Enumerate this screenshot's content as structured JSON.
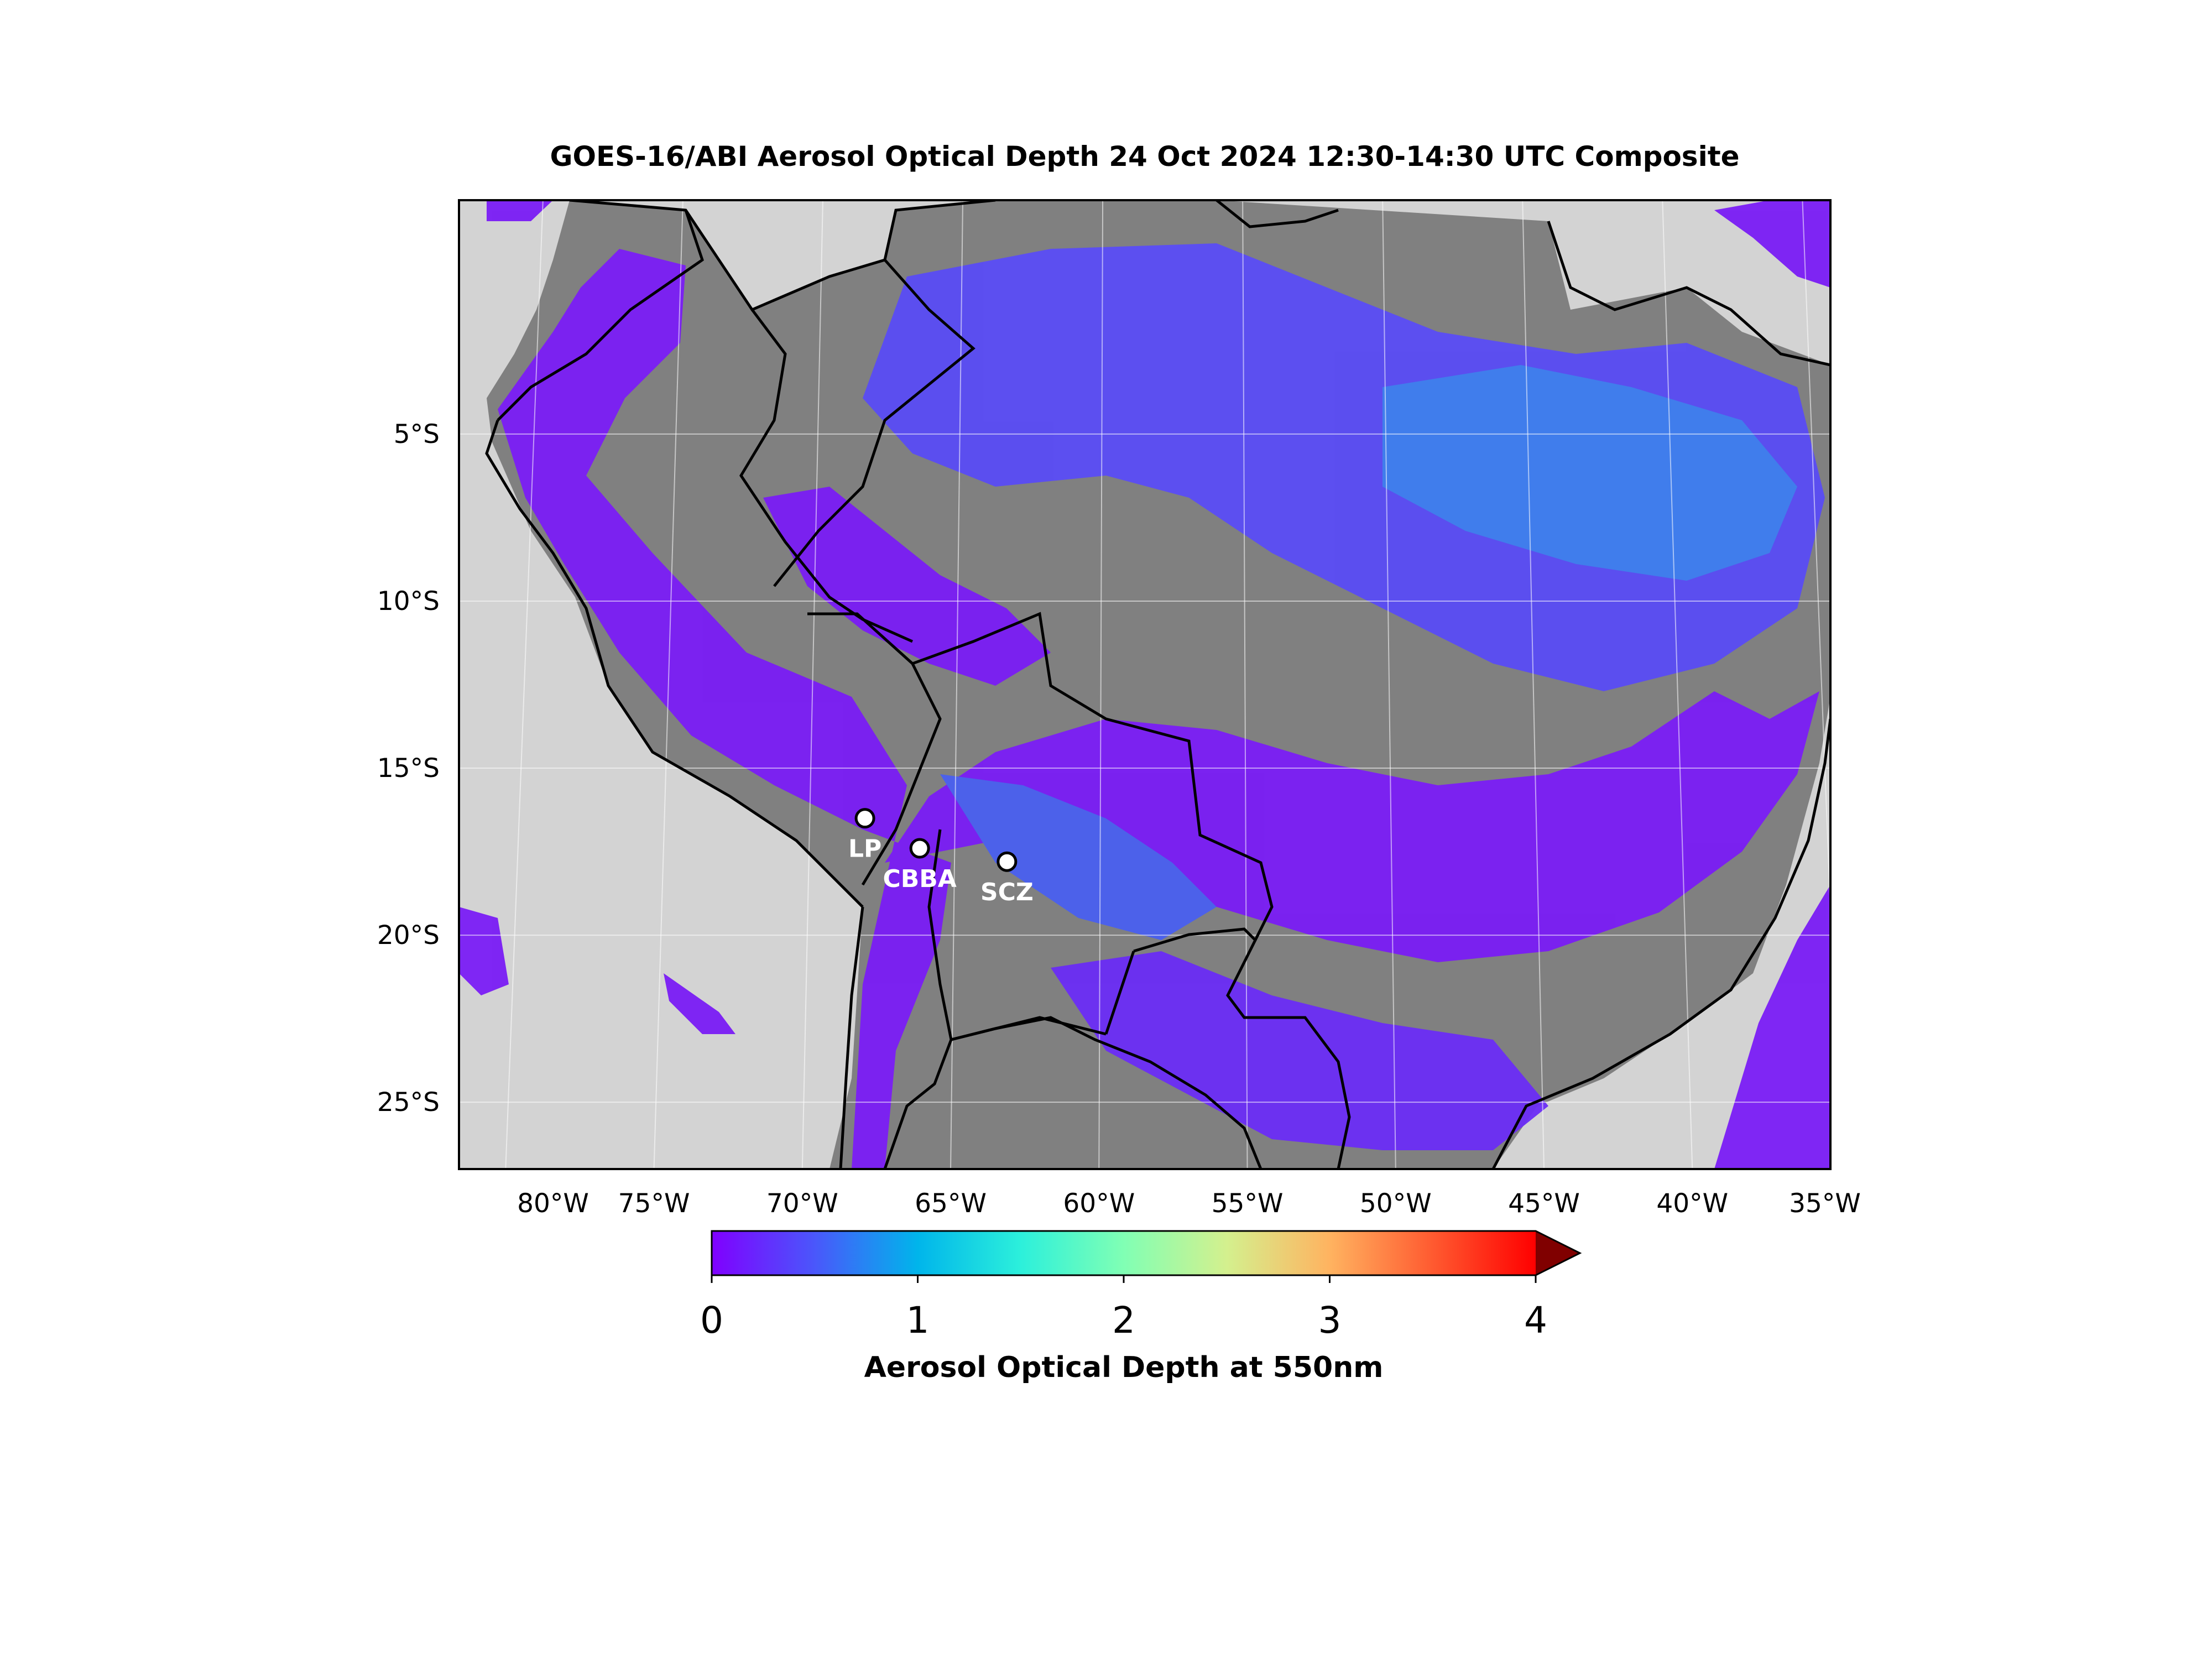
{
  "title": "GOES-16/ABI Aerosol Optical Depth  24 Oct 2024  12:30-14:30 UTC Composite",
  "map": {
    "lon_range": [
      -83,
      -34
    ],
    "lat_range": [
      -27,
      2
    ],
    "lat_ticks": [
      {
        "value": -5,
        "label": "5°S"
      },
      {
        "value": -10,
        "label": "10°S"
      },
      {
        "value": -15,
        "label": "15°S"
      },
      {
        "value": -20,
        "label": "20°S"
      },
      {
        "value": -25,
        "label": "25°S"
      }
    ],
    "lon_ticks": [
      {
        "value": -80,
        "label": "80°W"
      },
      {
        "value": -75,
        "label": "75°W"
      },
      {
        "value": -70,
        "label": "70°W"
      },
      {
        "value": -65,
        "label": "65°W"
      },
      {
        "value": -60,
        "label": "60°W"
      },
      {
        "value": -55,
        "label": "55°W"
      },
      {
        "value": -50,
        "label": "50°W"
      },
      {
        "value": -45,
        "label": "45°W"
      },
      {
        "value": -40,
        "label": "40°W"
      },
      {
        "value": -35,
        "label": "35°W"
      }
    ],
    "colors": {
      "ocean_no_data": "#d3d3d3",
      "land_no_data": "#808080",
      "aod_low": "#7a1cf5",
      "aod_mid": "#3d7df2"
    },
    "markers": [
      {
        "id": "LP",
        "label": "LP",
        "lon": -68.1,
        "lat": -16.5
      },
      {
        "id": "CBBA",
        "label": "CBBA",
        "lon": -66.2,
        "lat": -17.4
      },
      {
        "id": "SCZ",
        "label": "SCZ",
        "lon": -63.2,
        "lat": -17.8
      }
    ]
  },
  "colorbar": {
    "label": "Aerosol Optical Depth at 550nm",
    "min": 0,
    "max": 4,
    "extend": "max",
    "ticks": [
      "0",
      "1",
      "2",
      "3",
      "4"
    ],
    "colormap": "rainbow"
  }
}
